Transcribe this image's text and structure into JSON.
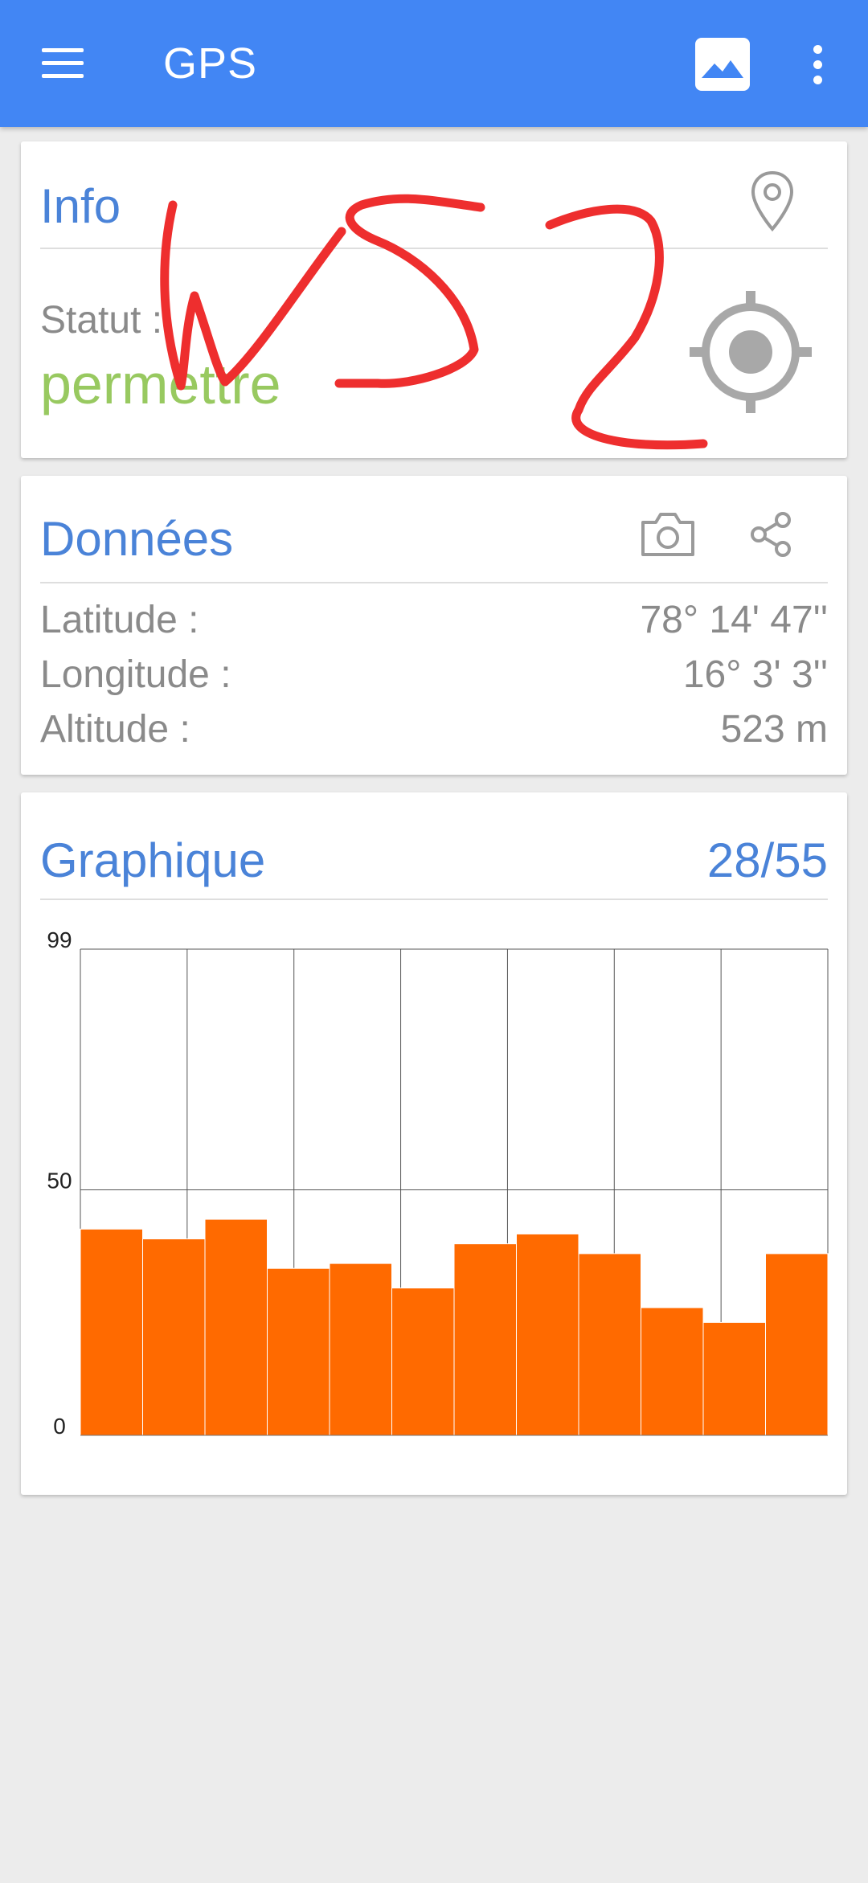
{
  "appbar": {
    "title": "GPS",
    "menu_icon": "hamburger-menu-icon",
    "image_icon": "image-icon",
    "overflow_icon": "more-vertical-icon"
  },
  "info": {
    "title": "Info",
    "pin_icon": "location-pin-icon",
    "statut_label": "Statut :",
    "statut_value": "permettre",
    "target_icon": "gps-target-icon",
    "handwriting": "WS2"
  },
  "donnees": {
    "title": "Données",
    "camera_icon": "camera-icon",
    "share_icon": "share-icon",
    "rows": [
      {
        "label": "Latitude :",
        "value": "78° 14' 47''"
      },
      {
        "label": "Longitude :",
        "value": "16° 3' 3''"
      },
      {
        "label": "Altitude :",
        "value": "523 m"
      }
    ]
  },
  "graphique": {
    "title": "Graphique",
    "count": "28/55"
  },
  "chart_data": {
    "type": "bar",
    "ylim": [
      0,
      99
    ],
    "yticks": [
      "99",
      "50",
      "0"
    ],
    "values": [
      42,
      40,
      44,
      34,
      35,
      30,
      39,
      41,
      37,
      26,
      23,
      37
    ],
    "color": "#ff6a00"
  },
  "colors": {
    "accent": "#4286f4",
    "title": "#4a83d8",
    "status": "#98c960",
    "bar": "#ff6a00",
    "scribble": "#ee2e2e"
  }
}
